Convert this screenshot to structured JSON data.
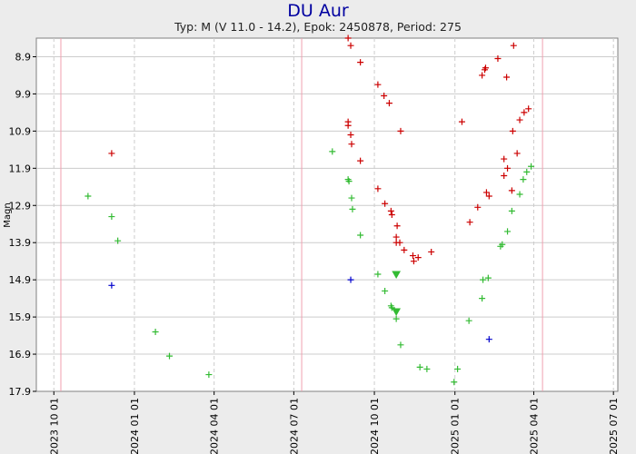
{
  "title": "DU Aur",
  "subtitle": "Typ: M (V 11.0 - 14.2), Epok: 2450878, Period: 275",
  "chart_data": {
    "type": "scatter",
    "ylabel": "Magn",
    "xlabel": "",
    "ylim": [
      17.9,
      8.4
    ],
    "y_inverted": true,
    "yticks": [
      "8.9",
      "9.9",
      "10.9",
      "11.9",
      "12.9",
      "13.9",
      "14.9",
      "15.9",
      "16.9",
      "17.9"
    ],
    "xlim": [
      "2023-09-11",
      "2025-07-06"
    ],
    "xticks": [
      "2023 10 01",
      "2024 01 01",
      "2024 04 01",
      "2024 07 01",
      "2024 10 01",
      "2025 01 01",
      "2025 04 01",
      "2025 07 01"
    ],
    "grid": true,
    "maxima_lines": [
      "2023-10-09",
      "2024-07-10",
      "2025-04-11"
    ],
    "colors": {
      "red": "#cc0000",
      "green": "#33bb33",
      "blue": "#0000cc",
      "maxima": "#f0a0b0",
      "grid": "#cccccc"
    },
    "series": [
      {
        "color": "red",
        "marker": "plus",
        "points": [
          [
            "2023-12-06",
            11.5
          ],
          [
            "2024-09-01",
            8.4
          ],
          [
            "2024-09-04",
            8.6
          ],
          [
            "2024-09-15",
            9.05
          ],
          [
            "2024-09-01",
            10.65
          ],
          [
            "2024-09-01",
            10.75
          ],
          [
            "2024-09-04",
            11.0
          ],
          [
            "2024-09-05",
            11.25
          ],
          [
            "2024-09-15",
            11.7
          ],
          [
            "2024-10-05",
            9.65
          ],
          [
            "2024-10-12",
            9.95
          ],
          [
            "2024-10-18",
            10.15
          ],
          [
            "2024-10-05",
            12.45
          ],
          [
            "2024-10-13",
            12.85
          ],
          [
            "2024-10-20",
            13.05
          ],
          [
            "2024-10-21",
            13.15
          ],
          [
            "2024-10-27",
            13.45
          ],
          [
            "2024-10-26",
            13.75
          ],
          [
            "2024-10-26",
            13.9
          ],
          [
            "2024-10-30",
            13.9
          ],
          [
            "2024-10-31",
            10.9
          ],
          [
            "2024-11-04",
            14.1
          ],
          [
            "2024-11-14",
            14.25
          ],
          [
            "2024-11-15",
            14.4
          ],
          [
            "2024-11-20",
            14.3
          ],
          [
            "2024-12-05",
            14.15
          ],
          [
            "2025-01-09",
            10.65
          ],
          [
            "2025-01-18",
            13.35
          ],
          [
            "2025-01-27",
            12.95
          ],
          [
            "2025-02-01",
            9.4
          ],
          [
            "2025-02-04",
            9.25
          ],
          [
            "2025-02-05",
            9.2
          ],
          [
            "2025-02-06",
            12.55
          ],
          [
            "2025-02-09",
            12.65
          ],
          [
            "2025-02-26",
            11.65
          ],
          [
            "2025-02-26",
            12.1
          ],
          [
            "2025-02-19",
            8.95
          ],
          [
            "2025-03-02",
            11.9
          ],
          [
            "2025-03-08",
            10.9
          ],
          [
            "2025-03-16",
            10.6
          ],
          [
            "2025-03-21",
            10.4
          ],
          [
            "2025-03-26",
            10.3
          ],
          [
            "2025-03-09",
            8.6
          ],
          [
            "2025-03-13",
            11.5
          ],
          [
            "2025-03-07",
            12.5
          ],
          [
            "2025-03-01",
            9.45
          ]
        ]
      },
      {
        "color": "green",
        "marker": "plus",
        "points": [
          [
            "2023-11-09",
            12.65
          ],
          [
            "2023-12-06",
            13.2
          ],
          [
            "2023-12-13",
            13.85
          ],
          [
            "2024-01-25",
            16.3
          ],
          [
            "2024-02-10",
            16.95
          ],
          [
            "2024-03-26",
            17.45
          ],
          [
            "2024-08-14",
            11.45
          ],
          [
            "2024-09-01",
            12.2
          ],
          [
            "2024-09-02",
            12.25
          ],
          [
            "2024-09-05",
            12.7
          ],
          [
            "2024-09-06",
            13.0
          ],
          [
            "2024-09-15",
            13.7
          ],
          [
            "2024-10-05",
            14.75
          ],
          [
            "2024-10-13",
            15.2
          ],
          [
            "2024-10-20",
            15.6
          ],
          [
            "2024-10-21",
            15.65
          ],
          [
            "2024-10-26",
            15.95
          ],
          [
            "2024-10-31",
            16.65
          ],
          [
            "2024-11-22",
            17.25
          ],
          [
            "2024-11-30",
            17.3
          ],
          [
            "2024-12-31",
            17.65
          ],
          [
            "2025-01-04",
            17.3
          ],
          [
            "2025-01-17",
            16.0
          ],
          [
            "2025-02-01",
            15.4
          ],
          [
            "2025-02-02",
            14.9
          ],
          [
            "2025-02-08",
            14.85
          ],
          [
            "2025-02-22",
            14.0
          ],
          [
            "2025-02-24",
            13.95
          ],
          [
            "2025-03-02",
            13.6
          ],
          [
            "2025-03-07",
            13.05
          ],
          [
            "2025-03-16",
            12.6
          ],
          [
            "2025-03-20",
            12.2
          ],
          [
            "2025-03-24",
            12.0
          ],
          [
            "2025-03-29",
            11.85
          ]
        ]
      },
      {
        "color": "green",
        "marker": "triangle-down",
        "points": [
          [
            "2024-10-26",
            14.75
          ],
          [
            "2024-10-26",
            15.75
          ]
        ]
      },
      {
        "color": "blue",
        "marker": "plus",
        "points": [
          [
            "2023-12-06",
            15.05
          ],
          [
            "2024-09-04",
            14.9
          ],
          [
            "2025-02-09",
            16.5
          ]
        ]
      }
    ]
  }
}
